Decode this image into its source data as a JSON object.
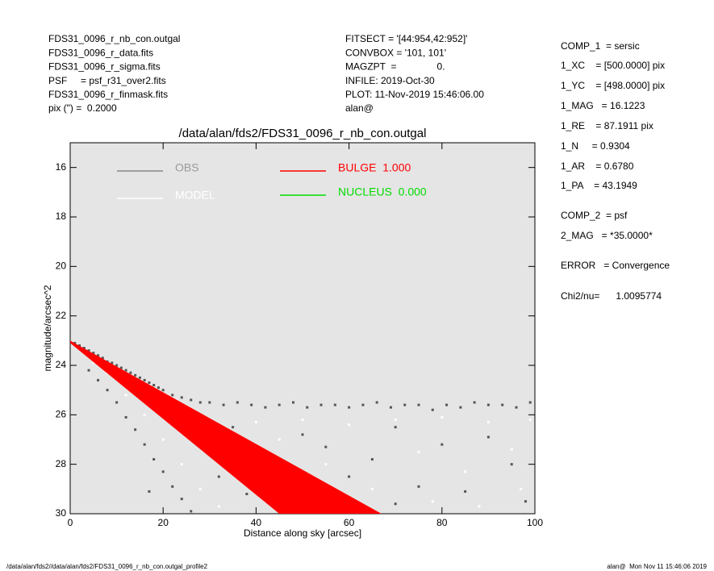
{
  "header": {
    "left": [
      "FDS31_0096_r_nb_con.outgal",
      "FDS31_0096_r_data.fits",
      "FDS31_0096_r_sigma.fits",
      "PSF     = psf_r31_over2.fits",
      "FDS31_0096_r_finmask.fits",
      "pix (\") =  0.2000"
    ],
    "middle": [
      "FITSECT = '[44:954,42:952]'",
      "CONVBOX = '101, 101'",
      "MAGZPT  =               0.",
      "INFILE: 2019-Oct-30",
      "PLOT: 11-Nov-2019 15:46:06.00",
      "alan@"
    ]
  },
  "info": [
    "COMP_1  = sersic",
    "1_XC    = [500.0000] pix",
    "1_YC    = [498.0000] pix",
    "1_MAG   = 16.1223",
    "1_RE    = 87.1911 pix",
    "1_N     = 0.9304",
    "1_AR    = 0.6780",
    "1_PA    = 43.1949",
    "COMP_2  = psf",
    "2_MAG   = *35.0000*",
    "ERROR   = Convergence",
    "Chi2/nu=      1.0095774"
  ],
  "footer": {
    "left": "/data/alan/fds2//data/alan/fds2/FDS31_0096_r_nb_con.outgal_profile2",
    "right": "alan@  Mon Nov 11 15:46:06 2019"
  },
  "chart_data": {
    "type": "scatter",
    "title": "/data/alan/fds2/FDS31_0096_r_nb_con.outgal",
    "x_label": "Distance along sky [arcsec]",
    "y_label": "magnitude/arcsec^2",
    "xlim": [
      0,
      100
    ],
    "ylim": [
      30,
      15
    ],
    "xticks": [
      0,
      20,
      40,
      60,
      80,
      100
    ],
    "yticks": [
      16,
      18,
      20,
      22,
      24,
      26,
      28,
      30
    ],
    "series": [
      {
        "name": "OBS",
        "color": "#555555",
        "x": [
          1,
          2,
          3,
          4,
          5,
          6,
          7,
          8,
          9,
          10,
          11,
          12,
          13,
          14,
          15,
          16,
          17,
          18,
          19,
          20,
          22,
          24,
          26,
          28,
          30,
          33,
          36,
          39,
          42,
          45,
          48,
          51,
          54,
          57,
          60,
          63,
          66,
          69,
          72,
          75,
          78,
          81,
          84,
          87,
          90,
          93,
          96,
          99,
          4,
          6,
          8,
          10,
          12,
          14,
          16,
          18,
          20,
          22,
          24,
          26,
          30,
          35,
          40,
          45,
          50,
          55,
          60,
          65,
          70,
          75,
          80,
          85,
          90,
          95,
          98,
          70,
          62,
          32,
          38,
          17
        ],
        "values": [
          23.1,
          23.2,
          23.3,
          23.4,
          23.5,
          23.6,
          23.7,
          23.85,
          23.9,
          24.0,
          24.1,
          24.2,
          24.3,
          24.4,
          24.5,
          24.6,
          24.7,
          24.8,
          24.9,
          25.0,
          25.2,
          25.3,
          25.4,
          25.5,
          25.5,
          25.6,
          25.5,
          25.6,
          25.7,
          25.6,
          25.5,
          25.7,
          25.6,
          25.6,
          25.7,
          25.6,
          25.5,
          25.7,
          25.6,
          25.6,
          25.8,
          25.6,
          25.7,
          25.5,
          25.6,
          25.6,
          25.7,
          25.5,
          24.2,
          24.6,
          25.0,
          25.5,
          26.1,
          26.6,
          27.2,
          27.8,
          28.3,
          28.9,
          29.4,
          29.9,
          27.0,
          26.5,
          27.5,
          28.2,
          26.8,
          27.3,
          28.5,
          27.8,
          26.5,
          28.9,
          27.2,
          29.1,
          26.9,
          28.0,
          29.5,
          29.6,
          29.8,
          28.5,
          29.2,
          29.1
        ]
      },
      {
        "name": "MODEL",
        "color": "#ffffff",
        "x": [
          2,
          5,
          8,
          12,
          16,
          20,
          24,
          28,
          32,
          30,
          40,
          50,
          60,
          70,
          80,
          90,
          99,
          35,
          45,
          55,
          65,
          75,
          85,
          95,
          42,
          52,
          78,
          88,
          97,
          25
        ],
        "values": [
          23.3,
          23.9,
          24.3,
          25.2,
          26.0,
          27.0,
          28.0,
          29.0,
          29.7,
          26.2,
          26.3,
          26.2,
          26.4,
          26.2,
          26.1,
          26.3,
          26.2,
          27.8,
          27.0,
          28.0,
          29.0,
          27.5,
          28.3,
          27.4,
          29.5,
          29.3,
          29.5,
          29.7,
          29.0,
          26.5
        ]
      },
      {
        "name": "BULGE  1.000",
        "color": "#ff0000",
        "x": [
          0,
          67
        ],
        "values": [
          23.0,
          30.0
        ],
        "x_low": [
          0,
          45
        ],
        "values_low": [
          23.1,
          30.0
        ]
      },
      {
        "name": "NUCLEUS  0.000",
        "color": "#00dd00"
      }
    ]
  }
}
